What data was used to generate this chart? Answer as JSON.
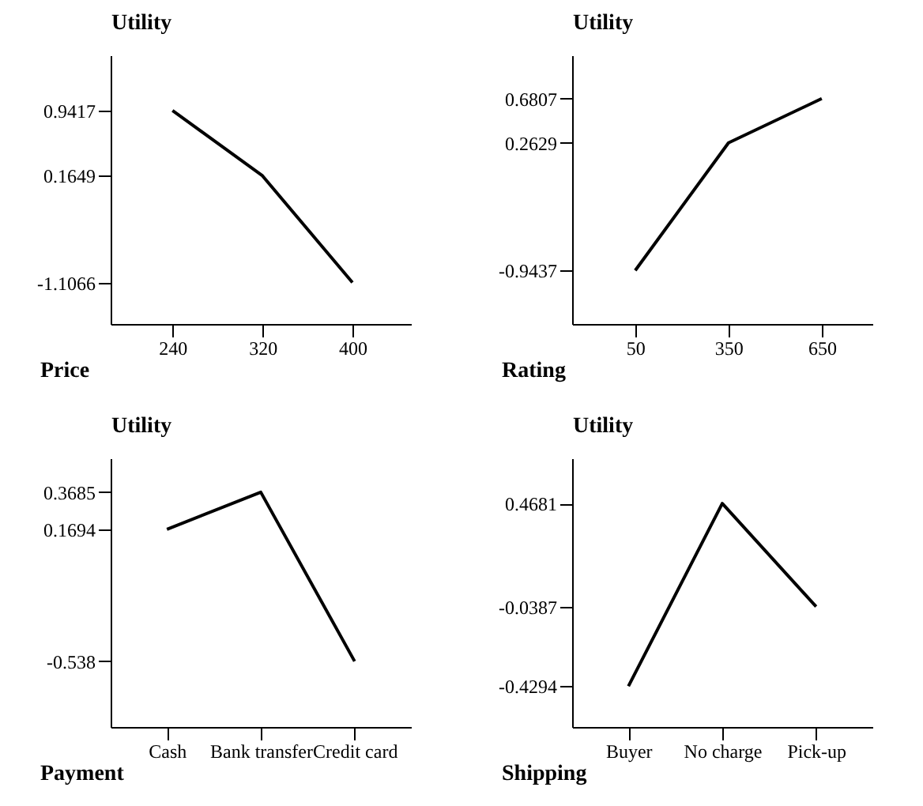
{
  "chart_data": [
    {
      "type": "line",
      "xlabel": "Price",
      "ylabel": "Utility",
      "x": [
        240,
        320,
        400
      ],
      "xlim": [
        185,
        452
      ],
      "xticks": [
        240,
        320,
        400
      ],
      "ylim": [
        -1.6,
        1.6
      ],
      "yticks": [
        -1.1066,
        0.1649,
        0.9417
      ],
      "series": [
        {
          "color": "#000000",
          "values": [
            0.9417,
            0.1649,
            -1.1066
          ]
        }
      ]
    },
    {
      "type": "line",
      "xlabel": "Rating",
      "ylabel": "Utility",
      "x": [
        50,
        350,
        650
      ],
      "xlim": [
        -153,
        813
      ],
      "xticks": [
        50,
        350,
        650
      ],
      "ylim": [
        -1.45,
        1.09
      ],
      "yticks": [
        -0.9437,
        0.2629,
        0.6807
      ],
      "series": [
        {
          "color": "#000000",
          "values": [
            -0.9437,
            0.2629,
            0.6807
          ]
        }
      ]
    },
    {
      "type": "line",
      "xlabel": "Payment",
      "ylabel": "Utility",
      "categories": [
        "Cash",
        "Bank transfer",
        "Credit card"
      ],
      "ylim": [
        -0.89,
        0.55
      ],
      "yticks": [
        -0.538,
        0.1694,
        0.3685
      ],
      "series": [
        {
          "color": "#000000",
          "values": [
            0.1694,
            0.3685,
            -0.538
          ]
        }
      ]
    },
    {
      "type": "line",
      "xlabel": "Shipping",
      "ylabel": "Utility",
      "categories": [
        "Buyer",
        "No charge",
        "Pick-up"
      ],
      "ylim": [
        -0.63,
        0.69
      ],
      "yticks": [
        -0.4294,
        -0.0387,
        0.4681
      ],
      "series": [
        {
          "color": "#000000",
          "values": [
            -0.4294,
            0.4681,
            -0.0387
          ]
        }
      ]
    }
  ]
}
